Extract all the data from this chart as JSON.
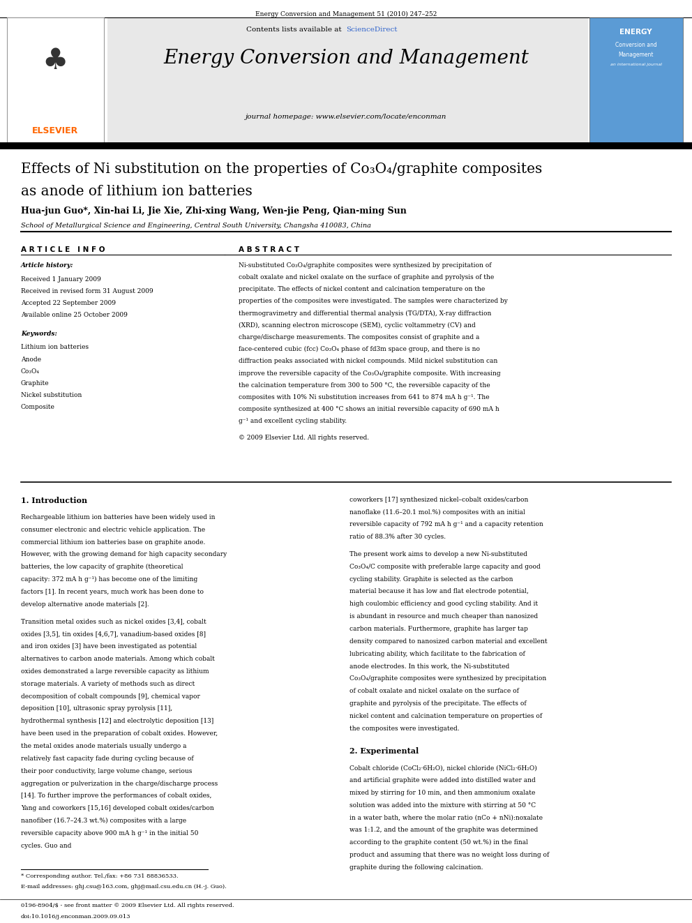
{
  "page_title": "Energy Conversion and Management 51 (2010) 247–252",
  "journal_name": "Energy Conversion and Management",
  "journal_homepage": "journal homepage: www.elsevier.com/locate/enconman",
  "contents_line": "Contents lists available at ScienceDirect",
  "sciencedirect_color": "#4472C4",
  "elsevier_color": "#FF6600",
  "paper_title_line1": "Effects of Ni substitution on the properties of Co₃O₄/graphite composites",
  "paper_title_line2": "as anode of lithium ion batteries",
  "authors": "Hua-jun Guo*, Xin-hai Li, Jie Xie, Zhi-xing Wang, Wen-jie Peng, Qian-ming Sun",
  "affiliation": "School of Metallurgical Science and Engineering, Central South University, Changsha 410083, China",
  "article_info_header": "A R T I C L E   I N F O",
  "abstract_header": "A B S T R A C T",
  "article_history_label": "Article history:",
  "received_line": "Received 1 January 2009",
  "received_revised": "Received in revised form 31 August 2009",
  "accepted_line": "Accepted 22 September 2009",
  "available_line": "Available online 25 October 2009",
  "keywords_label": "Keywords:",
  "kw1": "Lithium ion batteries",
  "kw2": "Anode",
  "kw3": "Co₃O₄",
  "kw4": "Graphite",
  "kw5": "Nickel substitution",
  "kw6": "Composite",
  "abstract_text": "Ni-substituted Co₃O₄/graphite composites were synthesized by precipitation of cobalt oxalate and nickel oxalate on the surface of graphite and pyrolysis of the precipitate. The effects of nickel content and calcination temperature on the properties of the composites were investigated. The samples were characterized by thermogravimetry and differential thermal analysis (TG/DTA), X-ray diffraction (XRD), scanning electron microscope (SEM), cyclic voltammetry (CV) and charge/discharge measurements. The composites consist of graphite and a face-centered cubic (fcc) Co₃O₄ phase of fd3m space group, and there is no diffraction peaks associated with nickel compounds. Mild nickel substitution can improve the reversible capacity of the Co₃O₄/graphite composite. With increasing the calcination temperature from 300 to 500 °C, the reversible capacity of the composites with 10% Ni substitution increases from 641 to 874 mA h g⁻¹. The composite synthesized at 400 °C shows an initial reversible capacity of 690 mA h g⁻¹ and excellent cycling stability.",
  "copyright_line": "© 2009 Elsevier Ltd. All rights reserved.",
  "intro_header": "1. Introduction",
  "intro_text1": "Rechargeable lithium ion batteries have been widely used in consumer electronic and electric vehicle application. The commercial lithium ion batteries base on graphite anode. However, with the growing demand for high capacity secondary batteries, the low capacity of graphite (theoretical capacity: 372 mA h g⁻¹) has become one of the limiting factors [1]. In recent years, much work has been done to develop alternative anode materials [2].",
  "intro_text2": "Transition metal oxides such as nickel oxides [3,4], cobalt oxides [3,5], tin oxides [4,6,7], vanadium-based oxides [8] and iron oxides [3] have been investigated as potential alternatives to carbon anode materials. Among which cobalt oxides demonstrated a large reversible capacity as lithium storage materials. A variety of methods such as direct decomposition of cobalt compounds [9], chemical vapor deposition [10], ultrasonic spray pyrolysis [11], hydrothermal synthesis [12] and electrolytic deposition [13] have been used in the preparation of cobalt oxides. However, the metal oxides anode materials usually undergo a relatively fast capacity fade during cycling because of their poor conductivity, large volume change, serious aggregation or pulverization in the charge/discharge process [14]. To further improve the performances of cobalt oxides, Yang and coworkers [15,16] developed cobalt oxides/carbon nanofiber (16.7–24.3 wt.%) composites with a large reversible capacity above 900 mA h g⁻¹ in the initial 50 cycles. Guo and",
  "right_col_text1": "coworkers [17] synthesized nickel–cobalt oxides/carbon nanoflake (11.6–20.1 mol.%) composites with an initial reversible capacity of 792 mA h g⁻¹ and a capacity retention ratio of 88.3% after 30 cycles.",
  "right_col_text2": "The present work aims to develop a new Ni-substituted Co₃O₄/C composite with preferable large capacity and good cycling stability. Graphite is selected as the carbon material because it has low and flat electrode potential, high coulombic efficiency and good cycling stability. And it is abundant in resource and much cheaper than nanosized carbon materials. Furthermore, graphite has larger tap density compared to nanosized carbon material and excellent lubricating ability, which facilitate to the fabrication of anode electrodes. In this work, the Ni-substituted Co₃O₄/graphite composites were synthesized by precipitation of cobalt oxalate and nickel oxalate on the surface of graphite and pyrolysis of the precipitate. The effects of nickel content and calcination temperature on properties of the composites were investigated.",
  "exp_header": "2. Experimental",
  "exp_text": "Cobalt chloride (CoCl₂·6H₂O), nickel chloride (NiCl₂·6H₂O) and artificial graphite were added into distilled water and mixed by stirring for 10 min, and then ammonium oxalate solution was added into the mixture with stirring at 50 °C in a water bath, where the molar ratio (nCo + nNi):noxalate was 1:1.2, and the amount of the graphite was determined according to the graphite content (50 wt.%) in the final product and assuming that there was no weight loss during of graphite during the following calcination.",
  "footnote_star": "* Corresponding author. Tel./fax: +86 731 88836533.",
  "footnote_email": "E-mail addresses: ghj.csu@163.com, ghj@mail.csu.edu.cn (H.-j. Guo).",
  "footer_line1": "0196-8904/$ - see front matter © 2009 Elsevier Ltd. All rights reserved.",
  "footer_line2": "doi:10.1016/j.enconman.2009.09.013",
  "bg_color": "#FFFFFF",
  "text_color": "#000000",
  "header_bg": "#E8E8E8",
  "thick_rule_color": "#000000",
  "blue_color": "#3366CC"
}
